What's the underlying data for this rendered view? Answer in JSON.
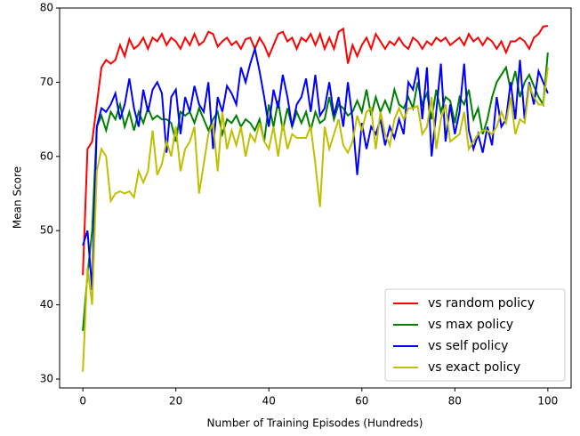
{
  "chart_data": {
    "type": "line",
    "xlabel": "Number of Training Episodes (Hundreds)",
    "ylabel": "Mean Score",
    "x": [
      0,
      1,
      2,
      3,
      4,
      5,
      6,
      7,
      8,
      9,
      10,
      11,
      12,
      13,
      14,
      15,
      16,
      17,
      18,
      19,
      20,
      21,
      22,
      23,
      24,
      25,
      26,
      27,
      28,
      29,
      30,
      31,
      32,
      33,
      34,
      35,
      36,
      37,
      38,
      39,
      40,
      41,
      42,
      43,
      44,
      45,
      46,
      47,
      48,
      49,
      50,
      51,
      52,
      53,
      54,
      55,
      56,
      57,
      58,
      59,
      60,
      61,
      62,
      63,
      64,
      65,
      66,
      67,
      68,
      69,
      70,
      71,
      72,
      73,
      74,
      75,
      76,
      77,
      78,
      79,
      80,
      81,
      82,
      83,
      84,
      85,
      86,
      87,
      88,
      89,
      90,
      91,
      92,
      93,
      94,
      95,
      96,
      97,
      98,
      99,
      100
    ],
    "series": [
      {
        "name": "vs random policy",
        "color": "#ff0000",
        "values": [
          44,
          61,
          62,
          67,
          72,
          73,
          72.5,
          73,
          75,
          73.5,
          75.8,
          74.5,
          75,
          76,
          74.5,
          76,
          75.5,
          76.5,
          75,
          76,
          75.5,
          74.5,
          76,
          75,
          76.5,
          75,
          75.5,
          76.8,
          76.5,
          74.8,
          75.5,
          76,
          75,
          75.5,
          74.5,
          75.8,
          76,
          74.5,
          76,
          75,
          73.5,
          75,
          76.5,
          76.8,
          75.5,
          76,
          74.5,
          76,
          75.5,
          76.5,
          75,
          76.5,
          74.5,
          76,
          74.5,
          76.8,
          77.2,
          72.5,
          75,
          73.5,
          75,
          76,
          74.5,
          76.5,
          75.5,
          74.5,
          75.5,
          75,
          76,
          75,
          74.5,
          76,
          75.5,
          74.5,
          75.5,
          75,
          76,
          75.5,
          76,
          75,
          75.5,
          76,
          75,
          76.5,
          75.5,
          76,
          75,
          76,
          75.5,
          74.5,
          75.5,
          74,
          75.5,
          75.5,
          76,
          75.5,
          74.5,
          76,
          76.5,
          77.5,
          77.6
        ]
      },
      {
        "name": "vs max policy",
        "color": "#008000",
        "values": [
          36.5,
          44,
          50,
          64,
          65.5,
          63.5,
          66,
          65,
          67,
          64,
          66,
          63.5,
          66,
          64.5,
          66.5,
          65,
          65.5,
          65,
          65,
          64.5,
          62,
          66,
          65.5,
          66,
          64.5,
          66.5,
          65,
          63.5,
          65,
          66,
          63,
          65,
          64.5,
          65.5,
          64,
          65,
          64.5,
          63.5,
          65,
          62,
          67,
          64,
          67.5,
          63.5,
          66.5,
          64,
          66,
          64.5,
          66,
          63.5,
          66,
          64.5,
          65,
          68,
          65,
          67,
          66.5,
          65.5,
          66,
          67.5,
          66,
          69,
          65.5,
          68,
          66,
          67.5,
          66,
          69,
          67,
          66.5,
          68,
          66.5,
          70,
          67,
          68.5,
          65,
          69,
          66,
          68,
          67.5,
          64.5,
          68,
          67,
          69,
          65,
          66.5,
          63,
          65,
          68,
          70,
          71,
          72,
          69,
          71.5,
          68,
          70,
          71,
          69.5,
          68,
          67,
          74
        ]
      },
      {
        "name": "vs self policy",
        "color": "#0000ff",
        "values": [
          48,
          50,
          42,
          64,
          66.5,
          66,
          67,
          68.5,
          65,
          67,
          70.5,
          66.5,
          64,
          69,
          66,
          69,
          70,
          68.5,
          60.5,
          68,
          69,
          63,
          68,
          66,
          69.5,
          67,
          66,
          70,
          61,
          68,
          66,
          69.5,
          68.5,
          67,
          72,
          70,
          72.5,
          74.5,
          71.5,
          68,
          64,
          69,
          66.5,
          71,
          68,
          64,
          67,
          68,
          70.5,
          66,
          71,
          65.5,
          66.5,
          70,
          65.5,
          68,
          64,
          70,
          65,
          57.5,
          64.5,
          61,
          64,
          63,
          65,
          61.5,
          64,
          62.5,
          65,
          63,
          70,
          69,
          72,
          65,
          72,
          60,
          66,
          72.5,
          62,
          67,
          63,
          66,
          72.5,
          63.5,
          61,
          63,
          60.5,
          64,
          61.5,
          68,
          64,
          65,
          70,
          65,
          73,
          65,
          70,
          67,
          71.5,
          70,
          68.5
        ]
      },
      {
        "name": "vs exact policy",
        "color": "#bfbf00",
        "values": [
          31,
          45,
          40,
          58,
          61,
          60,
          54,
          55,
          55.3,
          55,
          55.3,
          54.5,
          58,
          56.5,
          58,
          63.5,
          57.5,
          59,
          62,
          60,
          64,
          58,
          61,
          62,
          64,
          55,
          59,
          63,
          64.5,
          58,
          66,
          61,
          63.5,
          61.5,
          64,
          60,
          63,
          62,
          64.5,
          62,
          61,
          64,
          60,
          64.5,
          61,
          63,
          62.5,
          62.5,
          62.5,
          64,
          59,
          53.2,
          64,
          61,
          63,
          65,
          61.5,
          60.5,
          62,
          65.5,
          63.5,
          66,
          66.5,
          61,
          66,
          63,
          61.5,
          65,
          66.5,
          65,
          66.5,
          66.5,
          66.8,
          63,
          64,
          68,
          61,
          65,
          67,
          62,
          62.5,
          63,
          66,
          61,
          62,
          63,
          63.5,
          63.5,
          63,
          64,
          66,
          64.5,
          68,
          63,
          65,
          64.5,
          69.5,
          68,
          67,
          67,
          72
        ]
      }
    ],
    "xlim": [
      -5,
      105
    ],
    "ylim": [
      28.8,
      80
    ],
    "xticks": [
      0,
      20,
      40,
      60,
      80,
      100
    ],
    "yticks": [
      30,
      40,
      50,
      60,
      70,
      80
    ],
    "legend": "lower right"
  }
}
